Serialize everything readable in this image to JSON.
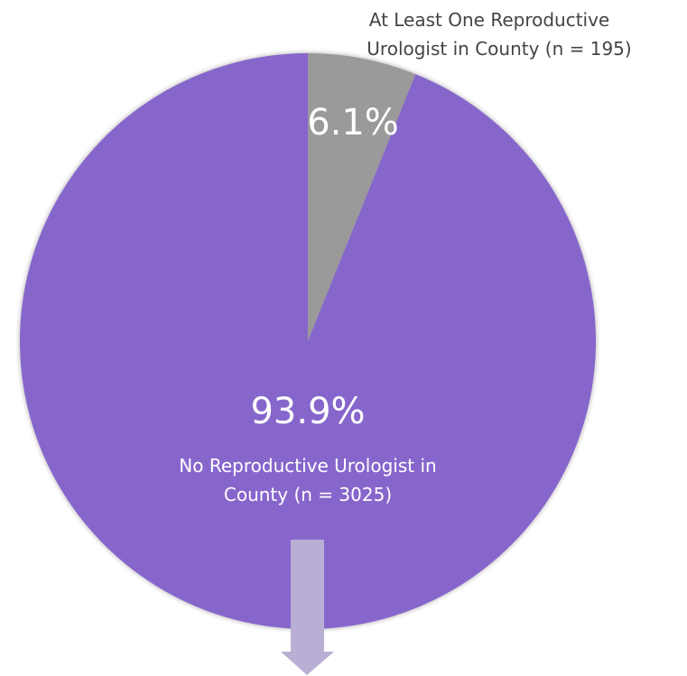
{
  "chart_data": {
    "type": "pie",
    "slices": [
      {
        "label_lines": [
          "At Least One Reproductive",
          "Urologist in County (n = 195)"
        ],
        "value": 6.1,
        "count": 195,
        "percent_label": "6.1%",
        "color": "#9a9a9a"
      },
      {
        "label_lines": [
          "No Reproductive Urologist in",
          "County (n = 3025)"
        ],
        "value": 93.9,
        "count": 3025,
        "percent_label": "93.9%",
        "color": "#8766cc"
      }
    ],
    "arrow_color": "#b9aed3"
  }
}
